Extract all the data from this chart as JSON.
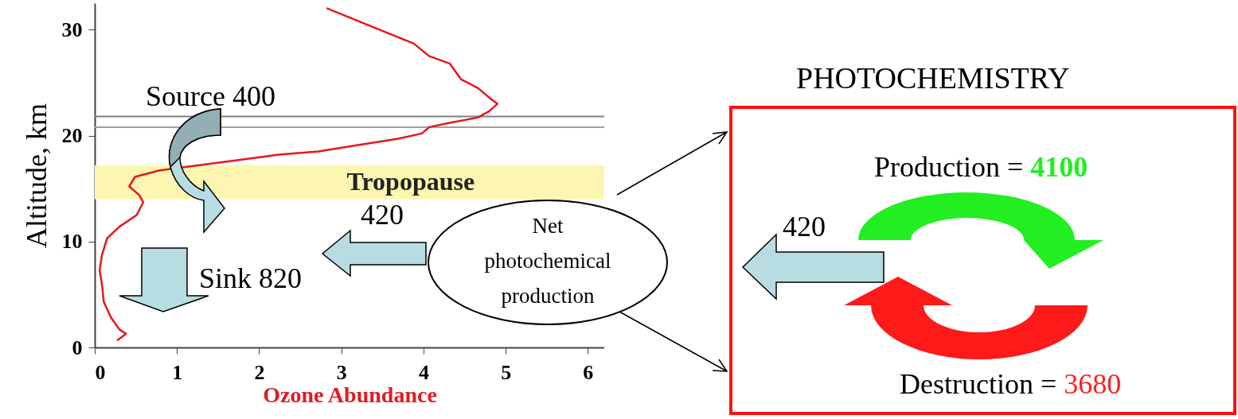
{
  "chart_data": [
    {
      "type": "line",
      "xlabel": "Ozone Abundance",
      "ylabel": "Altitude, km",
      "xlim": [
        0,
        6.2
      ],
      "xticks": [
        0,
        1,
        2,
        3,
        4,
        5,
        6
      ],
      "ylim": [
        0,
        32.5
      ],
      "yticks": [
        0,
        10,
        20,
        30
      ],
      "x": [
        2.83,
        3.4,
        3.88,
        4.07,
        4.32,
        4.46,
        4.66,
        4.83,
        4.9,
        4.8,
        4.66,
        4.32,
        4.07,
        3.98,
        3.69,
        3.2,
        2.72,
        2.24,
        1.66,
        1.07,
        0.78,
        0.49,
        0.42,
        0.54,
        0.59,
        0.51,
        0.3,
        0.15,
        0.09,
        0.06,
        0.09,
        0.11,
        0.2,
        0.3,
        0.38,
        0.28
      ],
      "series": [
        {
          "color": "#e8161b",
          "values": [
            32.0,
            30.2,
            28.7,
            27.5,
            26.8,
            25.3,
            24.5,
            23.4,
            23.0,
            22.3,
            21.7,
            21.2,
            20.8,
            20.2,
            19.7,
            19.1,
            18.5,
            18.2,
            17.6,
            17.0,
            16.7,
            16.1,
            15.2,
            14.4,
            13.7,
            12.5,
            11.4,
            10.3,
            8.8,
            7.3,
            5.8,
            4.3,
            2.8,
            1.7,
            1.3,
            0.7
          ]
        }
      ],
      "bands": [
        {
          "axis": "y",
          "from": 14.0,
          "to": 17.2,
          "label": "Tropopause",
          "color": "#fdf6b0"
        }
      ],
      "ref_lines": [
        {
          "axis": "y",
          "value": 21.8,
          "color": "#808080"
        },
        {
          "axis": "y",
          "value": 20.8,
          "color": "#a0a0a0"
        }
      ],
      "annotations": [
        "Source 400",
        "420",
        "Sink 820",
        "Net photochemical production"
      ],
      "marker": "none"
    },
    {
      "type": "other",
      "title": "PHOTOCHEMISTRY",
      "annotations": [
        "420",
        "Production = 4100",
        "Destruction = 3680"
      ]
    }
  ]
}
